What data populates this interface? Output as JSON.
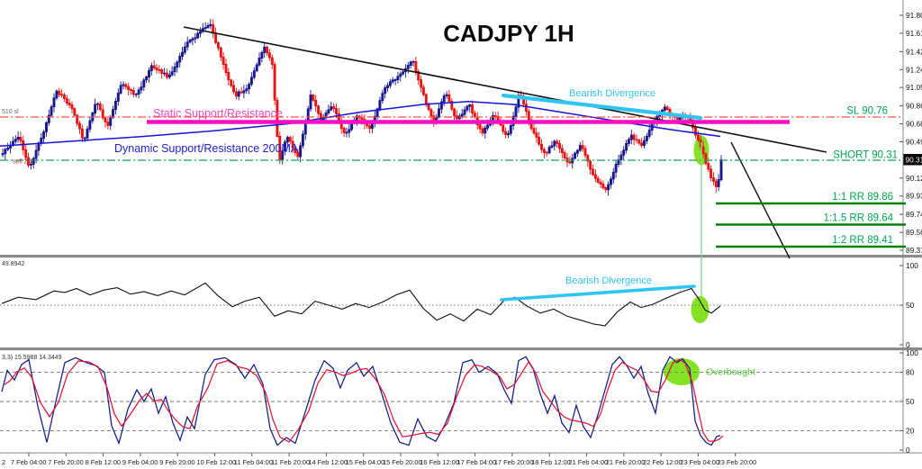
{
  "title": "CADJPY 1H",
  "colors": {
    "bull": "#16168f",
    "bear": "#e81212",
    "ma200": "#1515d6",
    "magenta_line": "#ff0cc4",
    "static_text": "#f246bb",
    "sl_line": "#ff5040",
    "short_line": "#15a353",
    "green_label": "#00a651",
    "rr_line": "#068006",
    "cyan": "#2fc5f2",
    "lime": "#7ee017",
    "overbought_text": "#52c93c",
    "rsi_line": "#101010",
    "stoch_k": "#101c8a",
    "stoch_d": "#e51235",
    "separator": "#8a8a8a"
  },
  "price_axis": {
    "labels": [
      "91.800",
      "91.615",
      "91.425",
      "91.240",
      "91.055",
      "90.865",
      "90.680",
      "90.495",
      "90.120",
      "89.935",
      "89.745",
      "89.560",
      "89.375"
    ],
    "current_price": "90.313"
  },
  "time_axis": {
    "partial_first": "2",
    "labels": [
      "7 Feb 04:00",
      "7 Feb 20:00",
      "8 Feb 12:00",
      "9 Feb 04:00",
      "9 Feb 20:00",
      "10 Feb 12:00",
      "11 Feb 04:00",
      "11 Feb 20:00",
      "14 Feb 12:00",
      "15 Feb 04:00",
      "15 Feb 20:00",
      "16 Feb 12:00",
      "17 Feb 04:00",
      "17 Feb 20:00",
      "18 Feb 12:00",
      "21 Feb 04:00",
      "21 Feb 20:00",
      "22 Feb 12:00",
      "23 Feb 04:00",
      "23 Feb 20:00"
    ]
  },
  "annotations": {
    "static_sr": "Static Support/Resistance",
    "dynamic_sr": "Dynamic Support/Resistance 200MA",
    "bearish_div_main": "Bearish Divergence",
    "bearish_div_osc": "Bearish Divergence",
    "overbought": "Overbought",
    "sl": "SL 90.76",
    "short": "SHORT 90.31",
    "rr_1": "1:1 RR 89.86",
    "rr_15": "1:1.5 RR 89.64",
    "rr_2": "1:2 RR 89.41",
    "order_sl": "510 sl",
    "order_sell": "sell 2.0"
  },
  "oscillator": {
    "value_label": "49.8942",
    "levels": [
      100,
      50,
      0
    ]
  },
  "stochastic": {
    "value_label": "3,3) 15.5988 14.3449",
    "levels": [
      100,
      80,
      50,
      20,
      0
    ]
  },
  "chart_data": [
    {
      "type": "candlestick",
      "title": "CADJPY 1H",
      "ylim": [
        89.375,
        91.8
      ],
      "x_range": [
        "7 Feb 04:00",
        "23 Feb 20:00"
      ],
      "key_levels": {
        "stop_loss": 90.76,
        "short_entry": 90.31,
        "rr_1_1": 89.86,
        "rr_1_1_5": 89.64,
        "rr_1_2": 89.41
      },
      "price_path_anchors": [
        [
          2,
          90.38
        ],
        [
          20,
          90.56
        ],
        [
          32,
          90.22
        ],
        [
          48,
          90.62
        ],
        [
          62,
          91.02
        ],
        [
          78,
          90.86
        ],
        [
          92,
          90.5
        ],
        [
          106,
          90.92
        ],
        [
          118,
          90.64
        ],
        [
          134,
          91.1
        ],
        [
          150,
          90.97
        ],
        [
          168,
          91.28
        ],
        [
          186,
          91.16
        ],
        [
          206,
          91.5
        ],
        [
          232,
          91.72
        ],
        [
          248,
          91.26
        ],
        [
          260,
          90.97
        ],
        [
          274,
          91.06
        ],
        [
          292,
          91.48
        ],
        [
          301,
          91.32
        ],
        [
          309,
          90.28
        ],
        [
          318,
          90.56
        ],
        [
          330,
          90.33
        ],
        [
          344,
          90.98
        ],
        [
          356,
          90.72
        ],
        [
          368,
          90.88
        ],
        [
          382,
          90.56
        ],
        [
          396,
          90.78
        ],
        [
          410,
          90.62
        ],
        [
          426,
          91.05
        ],
        [
          442,
          91.18
        ],
        [
          457,
          91.34
        ],
        [
          470,
          90.95
        ],
        [
          481,
          90.7
        ],
        [
          494,
          91.0
        ],
        [
          506,
          90.72
        ],
        [
          520,
          90.88
        ],
        [
          534,
          90.58
        ],
        [
          548,
          90.78
        ],
        [
          562,
          90.53
        ],
        [
          576,
          91.0
        ],
        [
          590,
          90.62
        ],
        [
          604,
          90.36
        ],
        [
          616,
          90.52
        ],
        [
          630,
          90.26
        ],
        [
          644,
          90.46
        ],
        [
          658,
          90.14
        ],
        [
          672,
          89.99
        ],
        [
          686,
          90.32
        ],
        [
          700,
          90.56
        ],
        [
          712,
          90.44
        ],
        [
          724,
          90.7
        ],
        [
          737,
          90.85
        ],
        [
          750,
          90.72
        ],
        [
          764,
          90.77
        ],
        [
          772,
          90.56
        ],
        [
          780,
          90.36
        ],
        [
          788,
          90.14
        ],
        [
          796,
          90.0
        ],
        [
          800,
          90.31
        ]
      ],
      "ma200_anchors": [
        [
          0,
          90.45
        ],
        [
          80,
          90.5
        ],
        [
          160,
          90.55
        ],
        [
          240,
          90.61
        ],
        [
          320,
          90.68
        ],
        [
          400,
          90.8
        ],
        [
          470,
          90.88
        ],
        [
          520,
          90.91
        ],
        [
          570,
          90.88
        ],
        [
          630,
          90.79
        ],
        [
          690,
          90.7
        ],
        [
          745,
          90.62
        ],
        [
          800,
          90.55
        ]
      ],
      "trendlines": [
        {
          "name": "descending-trendline",
          "from_price": 91.68,
          "to_price": 90.39
        },
        {
          "name": "projection-line",
          "from_price": 90.49,
          "to_price": 89.29
        }
      ],
      "divergence_line_prices": [
        90.97,
        90.75
      ]
    },
    {
      "type": "line",
      "name": "rsi-oscillator",
      "range": [
        0,
        100
      ],
      "levels": [
        100,
        50,
        0
      ],
      "last_value": 49.8942,
      "anchors": [
        [
          2,
          52
        ],
        [
          20,
          60
        ],
        [
          40,
          57
        ],
        [
          60,
          68
        ],
        [
          72,
          66
        ],
        [
          85,
          71
        ],
        [
          100,
          63
        ],
        [
          115,
          69
        ],
        [
          130,
          72
        ],
        [
          145,
          64
        ],
        [
          160,
          67
        ],
        [
          175,
          62
        ],
        [
          190,
          68
        ],
        [
          205,
          63
        ],
        [
          228,
          78
        ],
        [
          242,
          62
        ],
        [
          258,
          48
        ],
        [
          272,
          55
        ],
        [
          288,
          60
        ],
        [
          305,
          36
        ],
        [
          320,
          43
        ],
        [
          335,
          39
        ],
        [
          350,
          55
        ],
        [
          365,
          50
        ],
        [
          380,
          45
        ],
        [
          395,
          52
        ],
        [
          410,
          47
        ],
        [
          425,
          54
        ],
        [
          440,
          63
        ],
        [
          455,
          69
        ],
        [
          470,
          46
        ],
        [
          485,
          31
        ],
        [
          500,
          39
        ],
        [
          515,
          30
        ],
        [
          530,
          45
        ],
        [
          545,
          38
        ],
        [
          560,
          56
        ],
        [
          572,
          60
        ],
        [
          585,
          49
        ],
        [
          600,
          40
        ],
        [
          615,
          45
        ],
        [
          630,
          36
        ],
        [
          645,
          31
        ],
        [
          660,
          26
        ],
        [
          672,
          24
        ],
        [
          686,
          42
        ],
        [
          700,
          54
        ],
        [
          712,
          47
        ],
        [
          725,
          51
        ],
        [
          740,
          59
        ],
        [
          755,
          66
        ],
        [
          768,
          71
        ],
        [
          776,
          58
        ],
        [
          783,
          44
        ],
        [
          790,
          40
        ],
        [
          800,
          49
        ]
      ]
    },
    {
      "type": "line",
      "name": "stochastic",
      "range": [
        0,
        100
      ],
      "levels": [
        100,
        80,
        50,
        20,
        0
      ],
      "last_values": [
        15.5988,
        14.3449
      ],
      "k_anchors": [
        [
          2,
          60
        ],
        [
          8,
          82
        ],
        [
          16,
          72
        ],
        [
          24,
          88
        ],
        [
          32,
          93
        ],
        [
          42,
          45
        ],
        [
          52,
          8
        ],
        [
          62,
          50
        ],
        [
          72,
          90
        ],
        [
          84,
          95
        ],
        [
          96,
          90
        ],
        [
          106,
          87
        ],
        [
          116,
          80
        ],
        [
          124,
          25
        ],
        [
          132,
          7
        ],
        [
          142,
          42
        ],
        [
          152,
          62
        ],
        [
          160,
          50
        ],
        [
          168,
          63
        ],
        [
          176,
          38
        ],
        [
          184,
          55
        ],
        [
          192,
          28
        ],
        [
          200,
          10
        ],
        [
          208,
          34
        ],
        [
          216,
          22
        ],
        [
          228,
          78
        ],
        [
          238,
          93
        ],
        [
          250,
          95
        ],
        [
          262,
          88
        ],
        [
          272,
          74
        ],
        [
          282,
          88
        ],
        [
          292,
          68
        ],
        [
          300,
          22
        ],
        [
          308,
          5
        ],
        [
          318,
          13
        ],
        [
          328,
          7
        ],
        [
          340,
          42
        ],
        [
          350,
          72
        ],
        [
          360,
          92
        ],
        [
          370,
          84
        ],
        [
          378,
          64
        ],
        [
          386,
          82
        ],
        [
          396,
          90
        ],
        [
          404,
          76
        ],
        [
          414,
          86
        ],
        [
          424,
          58
        ],
        [
          434,
          28
        ],
        [
          444,
          8
        ],
        [
          454,
          5
        ],
        [
          464,
          32
        ],
        [
          474,
          14
        ],
        [
          484,
          9
        ],
        [
          494,
          26
        ],
        [
          504,
          48
        ],
        [
          514,
          90
        ],
        [
          524,
          93
        ],
        [
          532,
          80
        ],
        [
          542,
          86
        ],
        [
          552,
          79
        ],
        [
          560,
          62
        ],
        [
          568,
          48
        ],
        [
          576,
          92
        ],
        [
          584,
          96
        ],
        [
          592,
          84
        ],
        [
          600,
          58
        ],
        [
          608,
          38
        ],
        [
          616,
          56
        ],
        [
          624,
          28
        ],
        [
          632,
          18
        ],
        [
          640,
          46
        ],
        [
          648,
          24
        ],
        [
          656,
          13
        ],
        [
          664,
          36
        ],
        [
          672,
          62
        ],
        [
          680,
          88
        ],
        [
          688,
          96
        ],
        [
          696,
          87
        ],
        [
          704,
          74
        ],
        [
          712,
          86
        ],
        [
          720,
          58
        ],
        [
          728,
          38
        ],
        [
          736,
          82
        ],
        [
          744,
          96
        ],
        [
          752,
          90
        ],
        [
          758,
          94
        ],
        [
          766,
          84
        ],
        [
          772,
          30
        ],
        [
          778,
          15
        ],
        [
          784,
          8
        ],
        [
          790,
          5
        ],
        [
          796,
          14
        ],
        [
          800,
          15
        ]
      ]
    }
  ]
}
